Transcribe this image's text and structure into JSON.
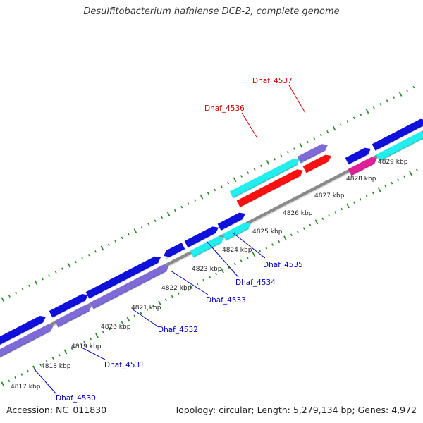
{
  "title": "Desulfitobacterium hafniense DCB-2, complete genome",
  "footer": {
    "accession": "Accession: NC_011830",
    "summary": "Topology: circular; Length: 5,279,134 bp; Genes: 4,972"
  },
  "colors": {
    "backbone": "#8a8a8a",
    "tick": "#2a8a2a",
    "gene_blue": "#1010dd",
    "gene_purple": "#7f6bd8",
    "gene_cyan": "#22eeee",
    "gene_red": "#ff1010",
    "gene_magenta": "#e0209a",
    "label_blue": "#0000c0",
    "label_red": "#d00000"
  },
  "scale_labels": [
    "4817 kbp",
    "4818 kbp",
    "4819 kbp",
    "4820 kbp",
    "4821 kbp",
    "4822 kbp",
    "4823 kbp",
    "4824 kbp",
    "4825 kbp",
    "4826 kbp",
    "4827 kbp",
    "4828 kbp",
    "4829 kbp"
  ],
  "gene_labels": [
    "Dhaf_4530",
    "Dhaf_4531",
    "Dhaf_4532",
    "Dhaf_4533",
    "Dhaf_4534",
    "Dhaf_4535",
    "Dhaf_4536",
    "Dhaf_4537"
  ]
}
